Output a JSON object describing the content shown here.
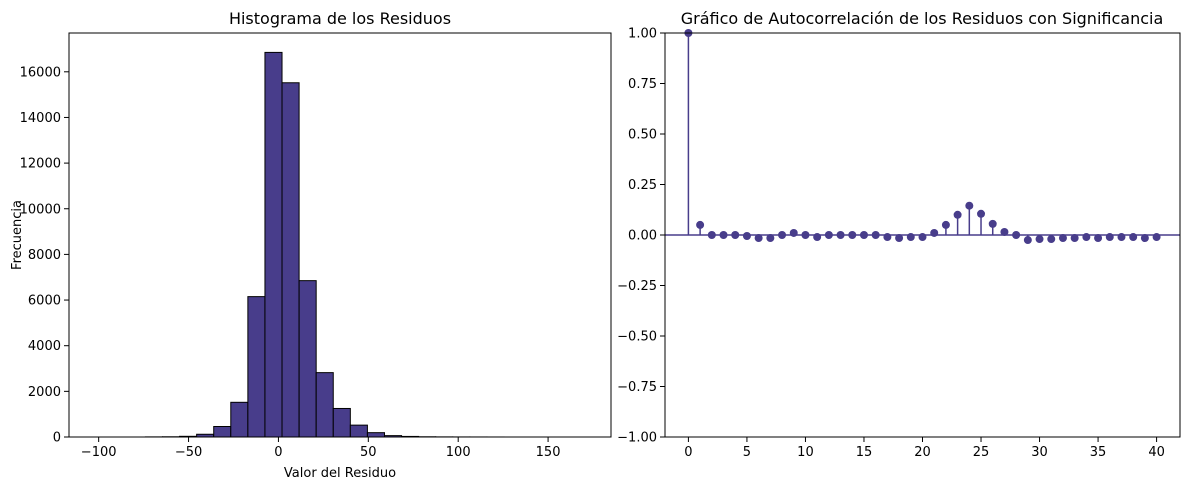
{
  "colors": {
    "bar_fill": "#483d8b",
    "bar_edge": "#000000",
    "stem": "#483d8b",
    "marker": "#483d8b",
    "baseline": "#483d8b"
  },
  "chart_data": [
    {
      "type": "bar",
      "title": "Histograma de los Residuos",
      "xlabel": "Valor del Residuo",
      "ylabel": "Frecuencia",
      "xlim": [
        -116.5,
        185
      ],
      "ylim": [
        0,
        17700
      ],
      "xticks": [
        -100,
        -50,
        0,
        50,
        100,
        150
      ],
      "xtick_labels": [
        "−100",
        "−50",
        "0",
        "50",
        "100",
        "150"
      ],
      "yticks": [
        0,
        2000,
        4000,
        6000,
        8000,
        10000,
        12000,
        14000,
        16000
      ],
      "ytick_labels": [
        "0",
        "2000",
        "4000",
        "6000",
        "8000",
        "10000",
        "12000",
        "14000",
        "16000"
      ],
      "bin_start": -102.5,
      "bin_width": 9.5,
      "values": [
        0,
        0,
        0,
        5,
        10,
        30,
        120,
        460,
        1520,
        6150,
        16850,
        15520,
        6850,
        2820,
        1250,
        520,
        190,
        60,
        25,
        10,
        5,
        3,
        2,
        1,
        0,
        0,
        0,
        0,
        0
      ]
    },
    {
      "type": "scatter",
      "subtype": "stem",
      "title": "Gráfico de Autocorrelación de los Residuos con Significancia",
      "xlim": [
        -2,
        42
      ],
      "ylim": [
        -1.0,
        1.0
      ],
      "xticks": [
        0,
        5,
        10,
        15,
        20,
        25,
        30,
        35,
        40
      ],
      "xtick_labels": [
        "0",
        "5",
        "10",
        "15",
        "20",
        "25",
        "30",
        "35",
        "40"
      ],
      "yticks": [
        -1.0,
        -0.75,
        -0.5,
        -0.25,
        0.0,
        0.25,
        0.5,
        0.75,
        1.0
      ],
      "ytick_labels": [
        "−1.00",
        "−0.75",
        "−0.50",
        "−0.25",
        "0.00",
        "0.25",
        "0.50",
        "0.75",
        "1.00"
      ],
      "x": [
        0,
        1,
        2,
        3,
        4,
        5,
        6,
        7,
        8,
        9,
        10,
        11,
        12,
        13,
        14,
        15,
        16,
        17,
        18,
        19,
        20,
        21,
        22,
        23,
        24,
        25,
        26,
        27,
        28,
        29,
        30,
        31,
        32,
        33,
        34,
        35,
        36,
        37,
        38,
        39,
        40
      ],
      "y": [
        1.0,
        0.05,
        0.0,
        0.0,
        0.0,
        -0.005,
        -0.015,
        -0.015,
        0.0,
        0.01,
        0.0,
        -0.01,
        0.0,
        0.0,
        0.0,
        0.0,
        0.0,
        -0.01,
        -0.015,
        -0.01,
        -0.01,
        0.01,
        0.05,
        0.1,
        0.145,
        0.105,
        0.055,
        0.015,
        0.0,
        -0.025,
        -0.02,
        -0.02,
        -0.015,
        -0.015,
        -0.01,
        -0.015,
        -0.01,
        -0.01,
        -0.01,
        -0.015,
        -0.01
      ]
    }
  ]
}
